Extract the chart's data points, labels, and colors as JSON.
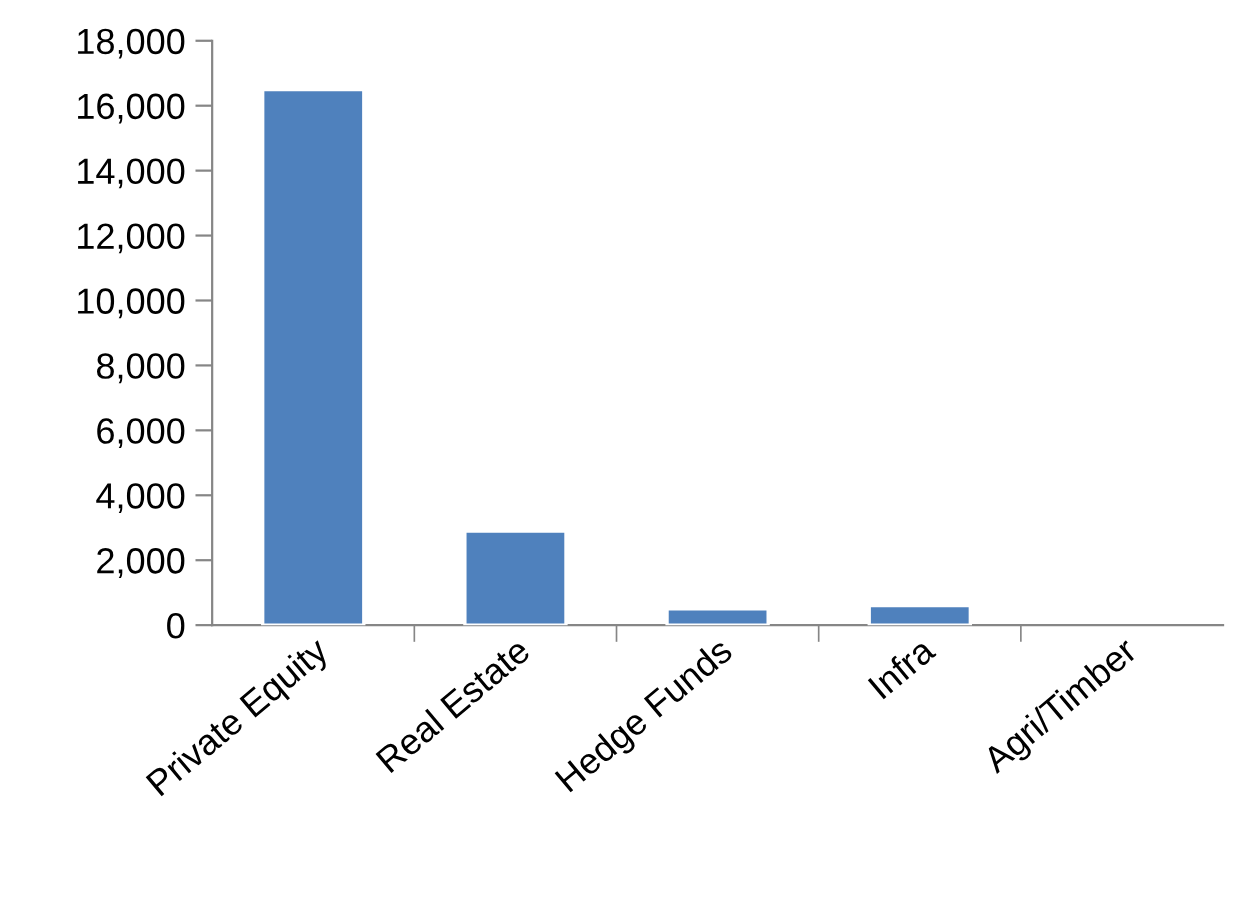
{
  "chart_data": {
    "type": "bar",
    "categories": [
      "Private Equity",
      "Real Estate",
      "Hedge Funds",
      "Infra",
      "Agri/Timber"
    ],
    "values": [
      16500,
      2900,
      500,
      600,
      null
    ],
    "color": "#4f81bd",
    "ylim": [
      0,
      18000
    ],
    "yticks": [
      {
        "value": 0,
        "label": "0"
      },
      {
        "value": 2000,
        "label": "2,000"
      },
      {
        "value": 4000,
        "label": "4,000"
      },
      {
        "value": 6000,
        "label": "6,000"
      },
      {
        "value": 8000,
        "label": "8,000"
      },
      {
        "value": 10000,
        "label": "10,000"
      },
      {
        "value": 12000,
        "label": "12,000"
      },
      {
        "value": 14000,
        "label": "14,000"
      },
      {
        "value": 16000,
        "label": "16,000"
      },
      {
        "value": 18000,
        "label": "18,000"
      }
    ],
    "grid": false,
    "legend": false
  }
}
